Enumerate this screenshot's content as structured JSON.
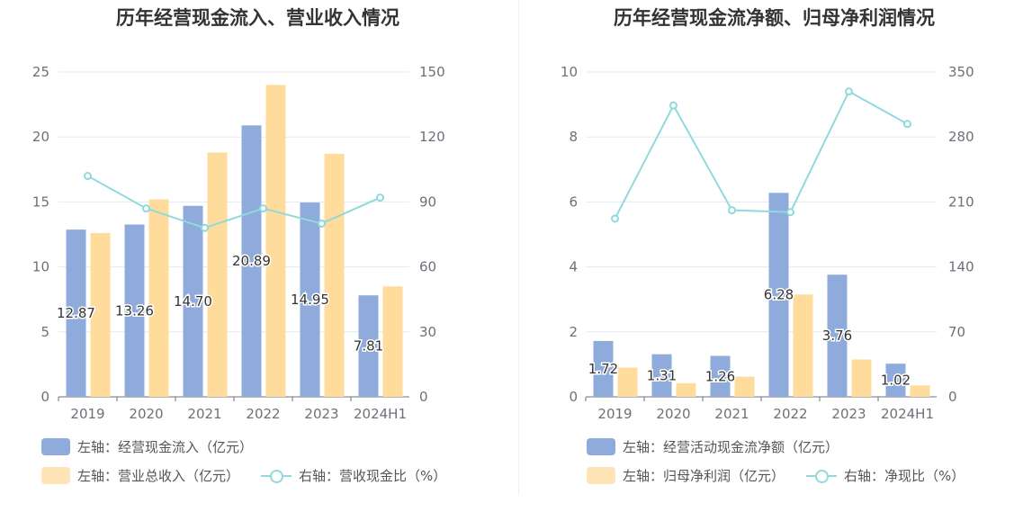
{
  "colors": {
    "bar_left": "#8fabdb",
    "bar_right": "#ffdb9c",
    "line": "#90d9dc",
    "grid": "#e4e8f4",
    "axis": "#6e7079"
  },
  "chart_data": [
    {
      "type": "bar",
      "title": "历年经营现金流入、营业收入情况",
      "categories": [
        "2019",
        "2020",
        "2021",
        "2022",
        "2023",
        "2024H1"
      ],
      "y_left": {
        "min": 0,
        "max": 25,
        "ticks": [
          0,
          5,
          10,
          15,
          20,
          25
        ]
      },
      "y_right": {
        "min": 0,
        "max": 150,
        "ticks": [
          0,
          30,
          60,
          90,
          120,
          150
        ]
      },
      "series": [
        {
          "name": "左轴：经营现金流入（亿元）",
          "axis": "left",
          "kind": "bar",
          "values": [
            12.87,
            13.26,
            14.7,
            20.89,
            14.95,
            7.81
          ],
          "labels": [
            "12.87",
            "13.26",
            "14.70",
            "20.89",
            "14.95",
            "7.81"
          ]
        },
        {
          "name": "左轴：营业总收入（亿元）",
          "axis": "left",
          "kind": "bar",
          "values": [
            12.6,
            15.2,
            18.8,
            24.0,
            18.7,
            8.5
          ]
        },
        {
          "name": "右轴：营收现金比（%）",
          "axis": "right",
          "kind": "line",
          "values": [
            102,
            87,
            78,
            87,
            80,
            92
          ]
        }
      ],
      "legend_position": "bottom-left"
    },
    {
      "type": "bar",
      "title": "历年经营现金流净额、归母净利润情况",
      "categories": [
        "2019",
        "2020",
        "2021",
        "2022",
        "2023",
        "2024H1"
      ],
      "y_left": {
        "min": 0,
        "max": 10,
        "ticks": [
          0,
          2,
          4,
          6,
          8,
          10
        ]
      },
      "y_right": {
        "min": 0,
        "max": 350,
        "ticks": [
          0,
          70,
          140,
          210,
          280,
          350
        ]
      },
      "series": [
        {
          "name": "左轴：经营活动现金流净额（亿元）",
          "axis": "left",
          "kind": "bar",
          "values": [
            1.72,
            1.31,
            1.26,
            6.28,
            3.76,
            1.02
          ],
          "labels": [
            "1.72",
            "1.31",
            "1.26",
            "6.28",
            "3.76",
            "1.02"
          ]
        },
        {
          "name": "左轴：归母净利润（亿元）",
          "axis": "left",
          "kind": "bar",
          "values": [
            0.9,
            0.42,
            0.62,
            3.15,
            1.15,
            0.35
          ]
        },
        {
          "name": "右轴：净现比（%）",
          "axis": "right",
          "kind": "line",
          "values": [
            192,
            314,
            201,
            199,
            329,
            294
          ]
        }
      ],
      "legend_position": "bottom-left"
    }
  ]
}
